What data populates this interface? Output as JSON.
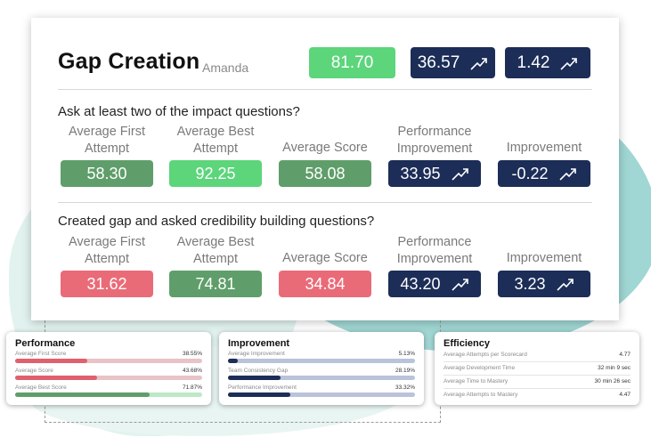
{
  "header": {
    "title": "Gap Creation",
    "subtitle": "Amanda",
    "scores": [
      {
        "value": "81.70",
        "color": "green",
        "trend": false
      },
      {
        "value": "36.57",
        "color": "navy",
        "trend": true
      },
      {
        "value": "1.42",
        "color": "navy",
        "trend": true
      }
    ]
  },
  "columns": [
    "Average First Attempt",
    "Average Best Attempt",
    "Average Score",
    "Performance Improvement",
    "Improvement"
  ],
  "questions": [
    {
      "text": "Ask at least two of the impact questions?",
      "labels": [
        "Average First\nAttempt",
        "Average Best\nAttempt",
        "Average Score",
        "Performance\nImprovement",
        "Improvement"
      ],
      "values": [
        "58.30",
        "92.25",
        "58.08",
        "33.95",
        "-0.22"
      ]
    },
    {
      "text": "Created gap and asked credibility building questions?",
      "labels": [
        "Average First\nAttempt",
        "Average Best\nAttempt",
        "Average Score",
        "Performance\nImprovement",
        "Improvement"
      ],
      "values": [
        "31.62",
        "74.81",
        "34.84",
        "43.20",
        "3.23"
      ]
    }
  ],
  "performance": {
    "title": "Performance",
    "rows": [
      {
        "label": "Average First Score",
        "value": "38.55%",
        "fraction": 0.3855
      },
      {
        "label": "Average Score",
        "value": "43.68%",
        "fraction": 0.4368
      },
      {
        "label": "Average Best Score",
        "value": "71.87%",
        "fraction": 0.7187
      }
    ]
  },
  "improvement": {
    "title": "Improvement",
    "rows": [
      {
        "label": "Average Improvement",
        "value": "5.13%",
        "fraction": 0.0513
      },
      {
        "label": "Team Consistency Gap",
        "value": "28.19%",
        "fraction": 0.2819
      },
      {
        "label": "Performance Improvement",
        "value": "33.32%",
        "fraction": 0.3332
      }
    ]
  },
  "efficiency": {
    "title": "Efficiency",
    "rows": [
      {
        "label": "Average Attempts per Scorecard",
        "value": "4.77"
      },
      {
        "label": "Average Development Time",
        "value": "32 min 9 sec"
      },
      {
        "label": "Average Time to Mastery",
        "value": "30 min 26 sec"
      },
      {
        "label": "Average Attempts to Mastery",
        "value": "4.47"
      }
    ]
  },
  "colors": {
    "green": "#5cd57b",
    "navy": "#1c2d57",
    "sgreen": "#5f9e6a",
    "red": "#ea6b78",
    "teal": "#8fcfcb"
  }
}
